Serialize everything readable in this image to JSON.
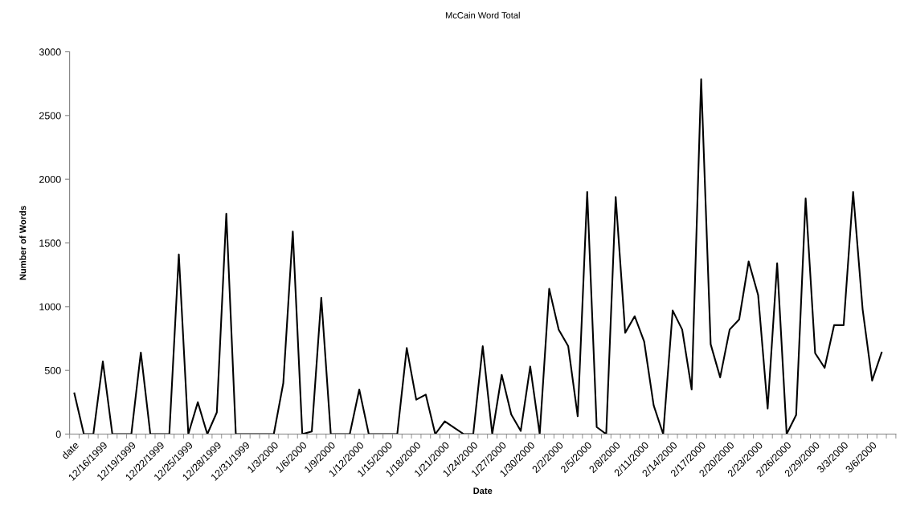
{
  "chart_data": {
    "type": "line",
    "title": "McCain Word Total",
    "xlabel": "Date",
    "ylabel": "Number of Words",
    "categories": [
      "date",
      null,
      null,
      "12/16/1999",
      null,
      null,
      "12/19/1999",
      null,
      null,
      "12/22/1999",
      null,
      null,
      "12/25/1999",
      null,
      null,
      "12/28/1999",
      null,
      null,
      "12/31/1999",
      null,
      null,
      "1/3/2000",
      null,
      null,
      "1/6/2000",
      null,
      null,
      "1/9/2000",
      null,
      null,
      "1/12/2000",
      null,
      null,
      "1/15/2000",
      null,
      null,
      "1/18/2000",
      null,
      null,
      "1/21/2000",
      null,
      null,
      "1/24/2000",
      null,
      null,
      "1/27/2000",
      null,
      null,
      "1/30/2000",
      null,
      null,
      "2/2/2000",
      null,
      null,
      "2/5/2000",
      null,
      null,
      "2/8/2000",
      null,
      null,
      "2/11/2000",
      null,
      null,
      "2/14/2000",
      null,
      null,
      "2/17/2000",
      null,
      null,
      "2/20/2000",
      null,
      null,
      "2/23/2000",
      null,
      null,
      "2/26/2000",
      null,
      null,
      "2/29/2000",
      null,
      null,
      "3/3/2000",
      null,
      null,
      "3/6/2000",
      null,
      null
    ],
    "series": [
      {
        "color": "#000000",
        "values": [
          320,
          0,
          0,
          570,
          0,
          0,
          0,
          640,
          0,
          0,
          0,
          1410,
          0,
          250,
          0,
          170,
          1730,
          0,
          0,
          0,
          0,
          0,
          400,
          1590,
          0,
          20,
          1070,
          0,
          0,
          0,
          350,
          0,
          0,
          0,
          0,
          675,
          270,
          310,
          0,
          100,
          50,
          0,
          0,
          690,
          0,
          465,
          155,
          25,
          530,
          0,
          1140,
          820,
          690,
          140,
          1900,
          55,
          0,
          1860,
          795,
          925,
          725,
          225,
          0,
          970,
          820,
          350,
          2785,
          705,
          445,
          820,
          900,
          1355,
          1090,
          200,
          1340,
          0,
          150,
          1850,
          635,
          520,
          855,
          855,
          1900,
          980,
          420,
          640,
          null
        ]
      }
    ],
    "ylim": [
      0,
      3000
    ],
    "yticks": [
      0,
      500,
      1000,
      1500,
      2000,
      2500,
      3000
    ],
    "grid": false,
    "legend": false,
    "marker": "none",
    "line_style": "solid"
  }
}
